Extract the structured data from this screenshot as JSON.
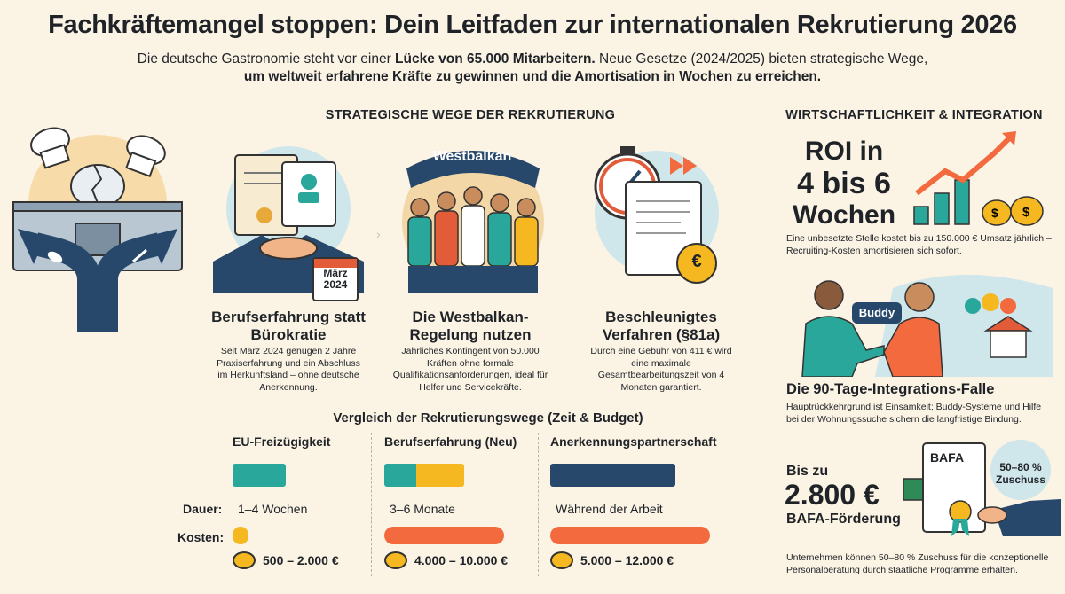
{
  "header": {
    "title": "Fachkräftemangel stoppen: Dein Leitfaden zur internationalen Rekrutierung 2026",
    "subtitle_pre": "Die deutsche Gastronomie steht vor einer ",
    "subtitle_bold": "Lücke von 65.000 Mitarbeitern.",
    "subtitle_post": " Neue Gesetze (2024/2025) bieten strategische Wege,",
    "subtitle_line2": "um weltweit erfahrene Kräfte zu gewinnen und die Amortisation in Wochen zu erreichen."
  },
  "strategies": {
    "heading": "STRATEGISCHE WEGE DER REKRUTIERUNG",
    "cards": [
      {
        "title": "Berufserfahrung statt Bürokratie",
        "desc": "Seit März 2024 genügen 2 Jahre Praxiserfahrung und ein Abschluss im Herkunftsland – ohne deutsche Anerkennung.",
        "calendar_month": "März",
        "calendar_year": "2024"
      },
      {
        "title": "Die Westbalkan-Regelung nutzen",
        "desc": "Jährliches Kontingent von 50.000 Kräften ohne formale Qualifikationsanforderungen, ideal für Helfer und Servicekräfte.",
        "banner": "Westbalkan"
      },
      {
        "title": "Beschleunigtes Verfahren (§81a)",
        "desc": "Durch eine Gebühr von 411 € wird eine maximale Gesamtbearbeitungszeit von 4 Monaten garantiert.",
        "coin_symbol": "€"
      }
    ]
  },
  "comparison": {
    "heading": "Vergleich der Rekrutierungswege (Zeit & Budget)",
    "duration_label": "Dauer:",
    "cost_label": "Kosten:",
    "routes": [
      {
        "name": "EU-Freizügigkeit",
        "duration": "1–4 Wochen",
        "cost": "500 – 2.000 €",
        "duration_fill": 0.2,
        "cost_fill": 0.06,
        "duration_color": "#2aa79b",
        "cost_color": "#f5b820"
      },
      {
        "name": "Berufserfahrung (Neu)",
        "duration": "3–6 Monate",
        "cost": "4.000 – 10.000 €",
        "duration_fill": 0.3,
        "cost_fill": 0.45,
        "duration_color": "#2aa79b",
        "duration_color2": "#f5b820",
        "cost_color": "#f26a3d"
      },
      {
        "name": "Anerkennungspartnerschaft",
        "duration": "Während der Arbeit",
        "cost": "5.000 – 12.000 €",
        "duration_fill": 0.47,
        "cost_fill": 0.6,
        "duration_color": "#27486b",
        "cost_color": "#f26a3d"
      }
    ]
  },
  "economics": {
    "heading": "WIRTSCHAFTLICHKEIT & INTEGRATION",
    "roi_line1": "ROI in",
    "roi_line2": "4 bis 6",
    "roi_line3": "Wochen",
    "roi_desc": "Eine unbesetzte Stelle kostet bis zu 150.000 € Umsatz jährlich – Recruiting-Kosten amortisieren sich sofort.",
    "buddy_label": "Buddy",
    "integration_title": "Die 90-Tage-Integrations-Falle",
    "integration_desc": "Hauptrückkehrgrund ist Einsamkeit; Buddy-Systeme und Hilfe bei der Wohnungssuche sichern die langfristige Bindung.",
    "bafa_pre": "Bis zu",
    "bafa_amount": "2.800 €",
    "bafa_label": "BAFA-Förderung",
    "bafa_doc": "BAFA",
    "bafa_badge": "50–80 % Zuschuss",
    "bafa_desc": "Unternehmen können 50–80 % Zuschuss für die konzeptionelle Personalberatung durch staatliche Programme erhalten."
  },
  "colors": {
    "teal": "#2aa79b",
    "yellow": "#f5b820",
    "orange": "#f26a3d",
    "navy": "#27486b",
    "background": "#fbf3e4"
  }
}
